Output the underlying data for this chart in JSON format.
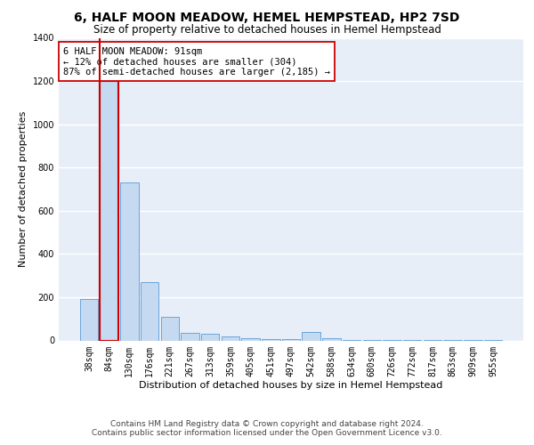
{
  "title": "6, HALF MOON MEADOW, HEMEL HEMPSTEAD, HP2 7SD",
  "subtitle": "Size of property relative to detached houses in Hemel Hempstead",
  "xlabel": "Distribution of detached houses by size in Hemel Hempstead",
  "ylabel": "Number of detached properties",
  "categories": [
    "38sqm",
    "84sqm",
    "130sqm",
    "176sqm",
    "221sqm",
    "267sqm",
    "313sqm",
    "359sqm",
    "405sqm",
    "451sqm",
    "497sqm",
    "542sqm",
    "588sqm",
    "634sqm",
    "680sqm",
    "726sqm",
    "772sqm",
    "817sqm",
    "863sqm",
    "909sqm",
    "955sqm"
  ],
  "values": [
    192,
    1200,
    730,
    270,
    108,
    35,
    30,
    20,
    10,
    5,
    5,
    40,
    10,
    2,
    2,
    1,
    1,
    1,
    1,
    1,
    1
  ],
  "bar_color": "#c5d9f1",
  "bar_edge_color": "#5b9bd5",
  "highlight_bar_index": 1,
  "vline_color": "#cc0000",
  "annotation_text": "6 HALF MOON MEADOW: 91sqm\n← 12% of detached houses are smaller (304)\n87% of semi-detached houses are larger (2,185) →",
  "annotation_box_color": "#ffffff",
  "annotation_box_edge": "#cc0000",
  "ylim": [
    0,
    1400
  ],
  "yticks": [
    0,
    200,
    400,
    600,
    800,
    1000,
    1200,
    1400
  ],
  "footer_line1": "Contains HM Land Registry data © Crown copyright and database right 2024.",
  "footer_line2": "Contains public sector information licensed under the Open Government Licence v3.0.",
  "background_color": "#e8eef8",
  "grid_color": "#ffffff",
  "title_fontsize": 10,
  "subtitle_fontsize": 8.5,
  "axis_label_fontsize": 8,
  "tick_fontsize": 7,
  "annotation_fontsize": 7.5,
  "footer_fontsize": 6.5
}
